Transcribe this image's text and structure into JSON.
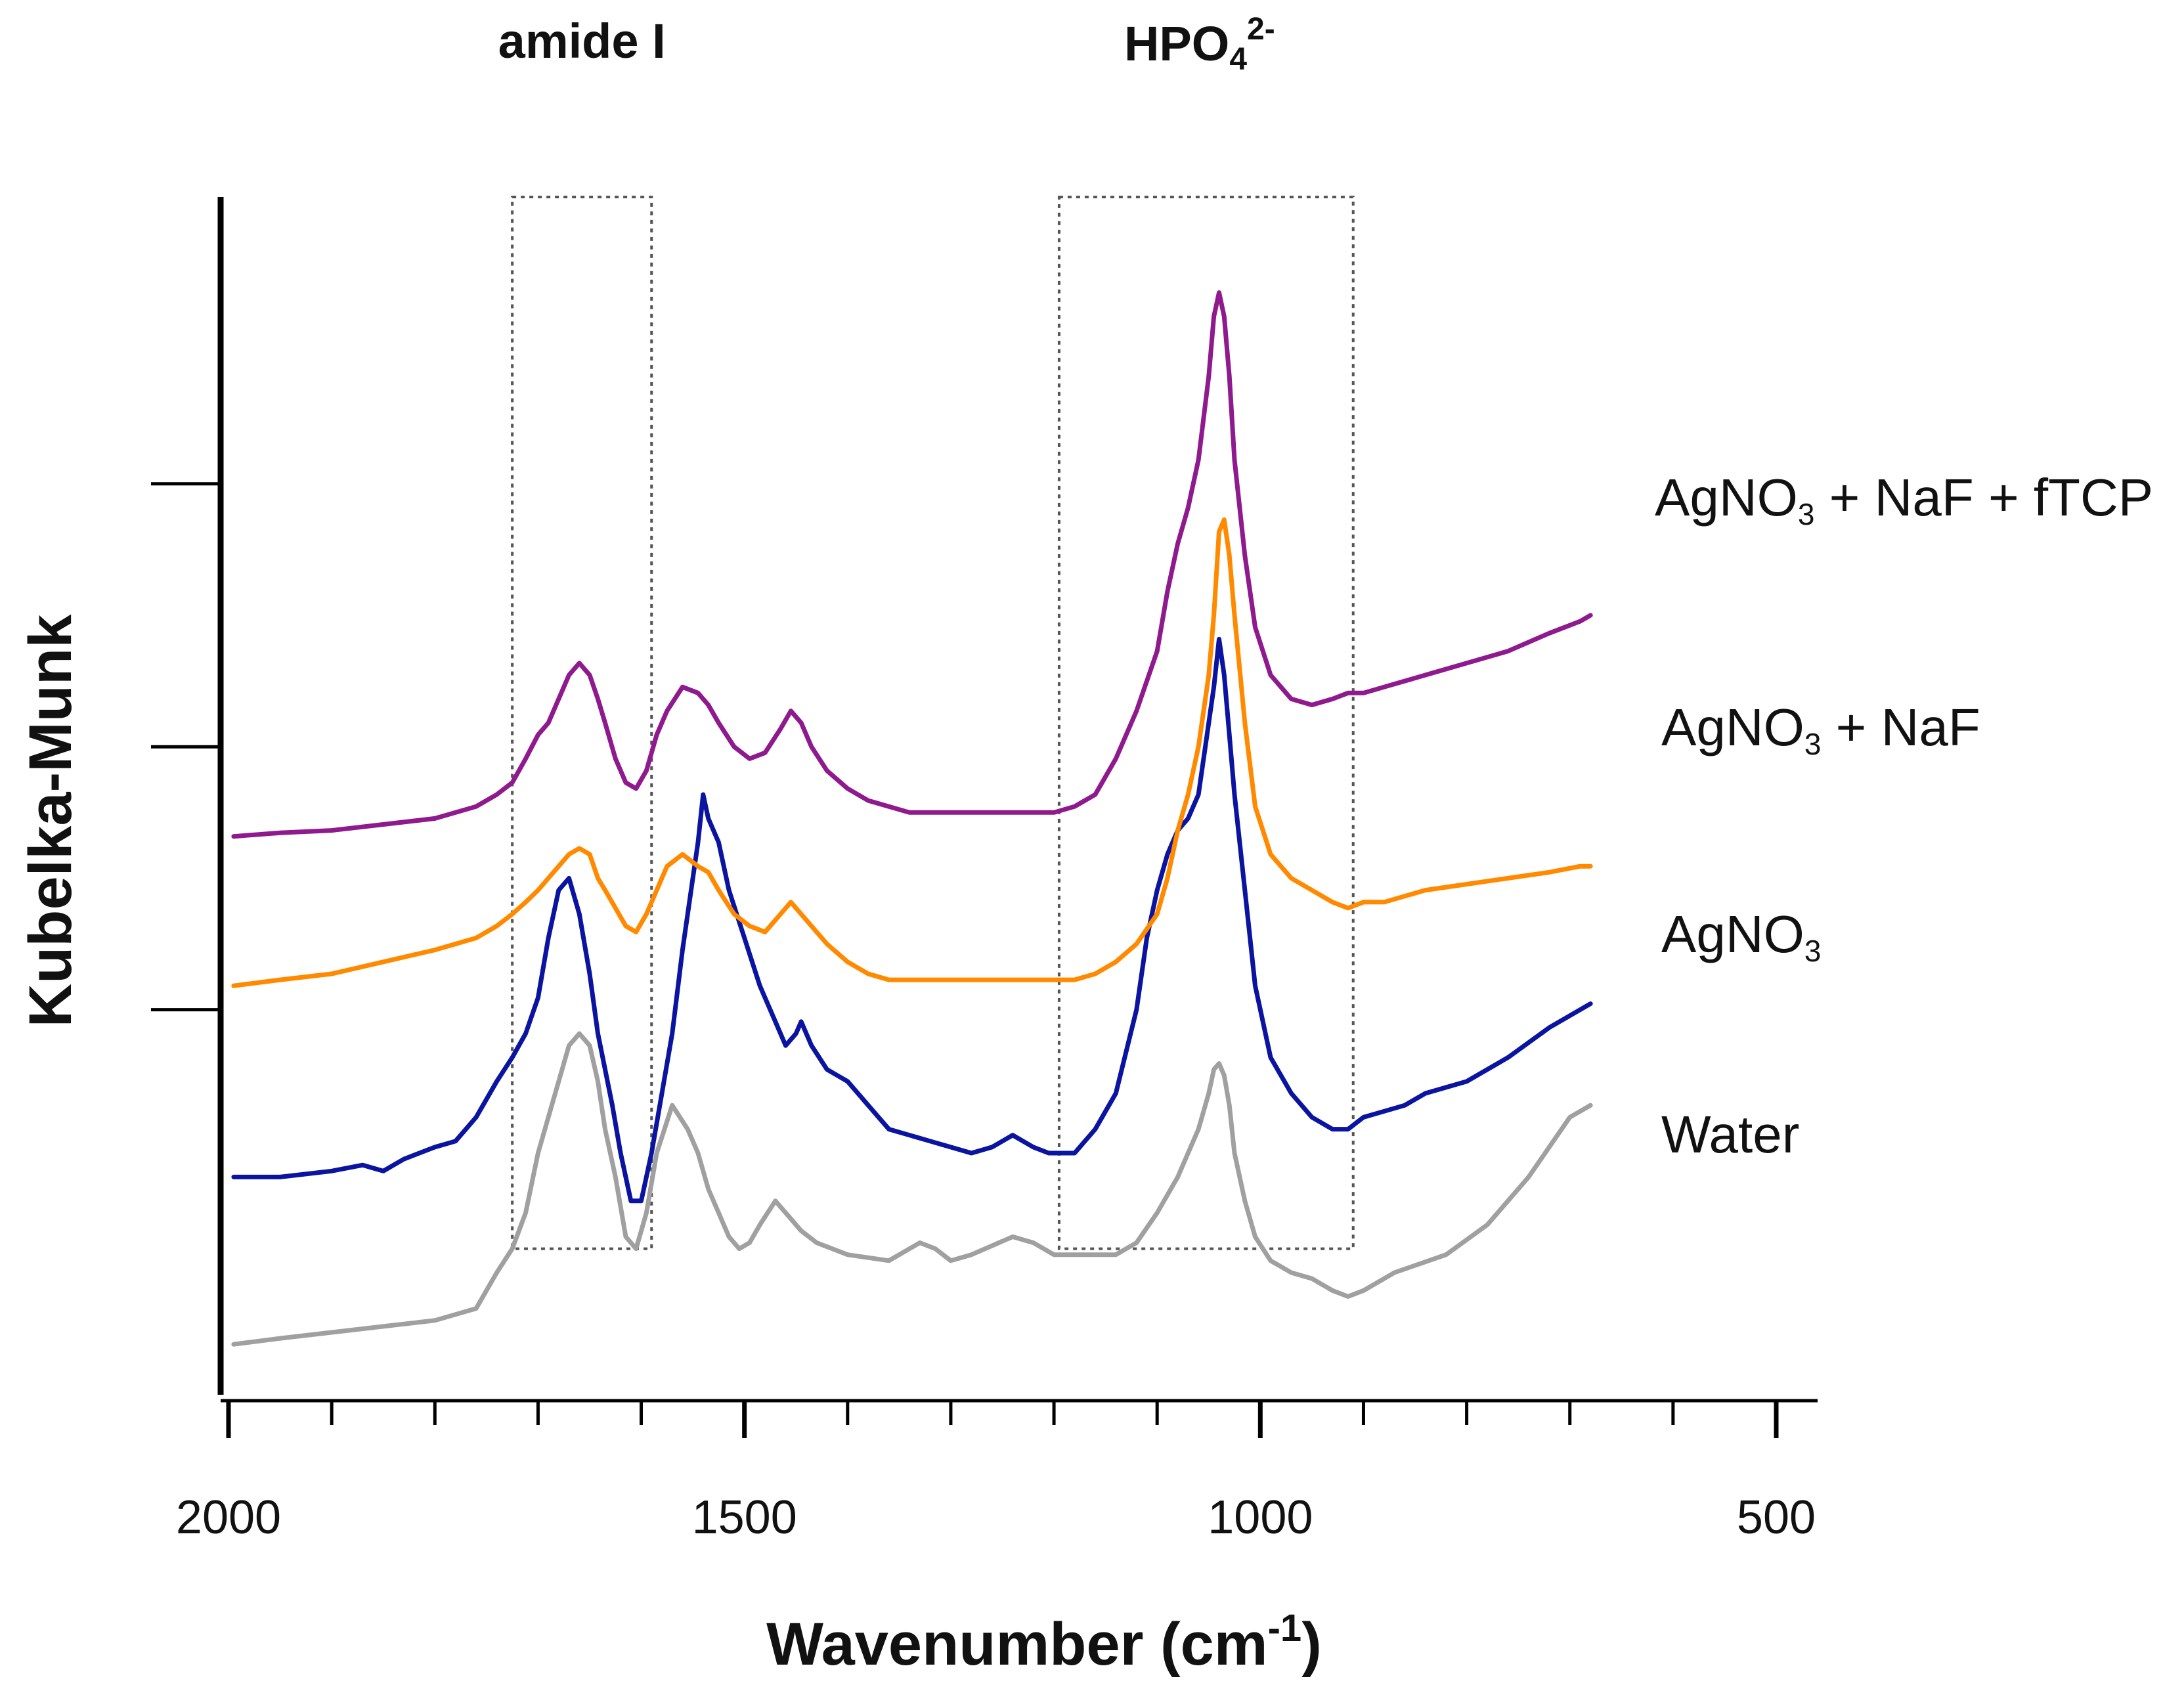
{
  "chart_data": {
    "type": "line",
    "title": "",
    "xlabel": "Wavenumber (cm",
    "xlabel_sup": "-1",
    "xlabel_end": ")",
    "ylabel": "Kubelka-Munk",
    "xlim": [
      2000,
      500
    ],
    "x_reversed": true,
    "ylim": [
      0,
      10
    ],
    "y_ticks": [
      3.2,
      5.4,
      7.6
    ],
    "grid": false,
    "x_ticks": [
      2000,
      1500,
      1000,
      500
    ],
    "x_tick_labels": [
      "2000",
      "1500",
      "1000",
      "500"
    ],
    "x_minor_ticks": [
      2000,
      1900,
      1800,
      1700,
      1600,
      1500,
      1400,
      1300,
      1200,
      1100,
      1000,
      900,
      800,
      700,
      600,
      500
    ],
    "regions": [
      {
        "name": "amide-region",
        "label": "amide I",
        "x_range": [
          1725,
          1590
        ],
        "y_range": [
          1.2,
          10.0
        ]
      },
      {
        "name": "phosphate-region",
        "label_main": "HPO",
        "label_sub": "4",
        "label_sup": "2-",
        "x_range": [
          1195,
          910
        ],
        "y_range": [
          1.2,
          10.0
        ]
      }
    ],
    "series": [
      {
        "name": "Water",
        "label_parts": [
          "Water"
        ],
        "color": "#a0a0a0",
        "x": [
          1995,
          1950,
          1900,
          1850,
          1800,
          1760,
          1740,
          1725,
          1712,
          1700,
          1690,
          1680,
          1670,
          1660,
          1650,
          1642,
          1635,
          1625,
          1615,
          1605,
          1595,
          1585,
          1570,
          1555,
          1545,
          1535,
          1525,
          1515,
          1505,
          1495,
          1485,
          1470,
          1455,
          1445,
          1430,
          1400,
          1360,
          1330,
          1315,
          1300,
          1280,
          1240,
          1220,
          1200,
          1180,
          1140,
          1120,
          1100,
          1080,
          1070,
          1060,
          1050,
          1045,
          1040,
          1035,
          1030,
          1025,
          1015,
          1005,
          990,
          970,
          950,
          930,
          915,
          900,
          870,
          820,
          780,
          740,
          700,
          680
        ],
        "y": [
          0.4,
          0.45,
          0.5,
          0.55,
          0.6,
          0.7,
          1.0,
          1.2,
          1.5,
          2.0,
          2.3,
          2.6,
          2.9,
          3.0,
          2.9,
          2.6,
          2.2,
          1.8,
          1.3,
          1.2,
          1.5,
          2.0,
          2.4,
          2.2,
          2.0,
          1.7,
          1.5,
          1.3,
          1.2,
          1.25,
          1.4,
          1.6,
          1.45,
          1.35,
          1.25,
          1.15,
          1.1,
          1.25,
          1.2,
          1.1,
          1.15,
          1.3,
          1.25,
          1.15,
          1.15,
          1.15,
          1.25,
          1.5,
          1.8,
          2.0,
          2.2,
          2.5,
          2.7,
          2.75,
          2.65,
          2.4,
          2.0,
          1.6,
          1.3,
          1.1,
          1.0,
          0.95,
          0.85,
          0.8,
          0.85,
          1.0,
          1.15,
          1.4,
          1.8,
          2.3,
          2.4
        ]
      },
      {
        "name": "AgNO3",
        "label_parts": [
          "AgNO",
          "3",
          ""
        ],
        "color": "#0a14a0",
        "x": [
          1995,
          1950,
          1900,
          1870,
          1850,
          1830,
          1800,
          1780,
          1760,
          1740,
          1725,
          1712,
          1700,
          1690,
          1680,
          1670,
          1660,
          1650,
          1642,
          1635,
          1628,
          1620,
          1610,
          1600,
          1590,
          1580,
          1570,
          1560,
          1550,
          1545,
          1540,
          1535,
          1525,
          1515,
          1500,
          1485,
          1470,
          1460,
          1450,
          1445,
          1435,
          1420,
          1400,
          1380,
          1360,
          1340,
          1320,
          1300,
          1280,
          1260,
          1240,
          1220,
          1205,
          1190,
          1180,
          1160,
          1140,
          1120,
          1110,
          1100,
          1090,
          1080,
          1070,
          1060,
          1050,
          1045,
          1040,
          1035,
          1030,
          1025,
          1015,
          1005,
          990,
          970,
          950,
          930,
          915,
          900,
          880,
          860,
          840,
          800,
          760,
          720,
          690,
          680
        ],
        "y": [
          1.8,
          1.8,
          1.85,
          1.9,
          1.85,
          1.95,
          2.05,
          2.1,
          2.3,
          2.6,
          2.8,
          3.0,
          3.3,
          3.8,
          4.2,
          4.3,
          4.0,
          3.5,
          3.0,
          2.7,
          2.4,
          2.0,
          1.6,
          1.6,
          2.0,
          2.5,
          3.0,
          3.7,
          4.3,
          4.6,
          5.0,
          4.8,
          4.6,
          4.2,
          3.8,
          3.4,
          3.1,
          2.9,
          3.0,
          3.1,
          2.9,
          2.7,
          2.6,
          2.4,
          2.2,
          2.15,
          2.1,
          2.05,
          2.0,
          2.05,
          2.15,
          2.05,
          2.0,
          2.0,
          2.0,
          2.2,
          2.5,
          3.2,
          3.8,
          4.2,
          4.5,
          4.7,
          4.8,
          5.0,
          5.6,
          5.9,
          6.3,
          6.0,
          5.5,
          5.0,
          4.2,
          3.4,
          2.8,
          2.5,
          2.3,
          2.2,
          2.2,
          2.3,
          2.35,
          2.4,
          2.5,
          2.6,
          2.8,
          3.05,
          3.2,
          3.25
        ]
      },
      {
        "name": "AgNO3 + NaF",
        "label_parts": [
          "AgNO",
          "3",
          " + NaF"
        ],
        "color": "#ff8a00",
        "x": [
          1995,
          1950,
          1900,
          1850,
          1800,
          1760,
          1740,
          1725,
          1712,
          1700,
          1690,
          1680,
          1670,
          1660,
          1650,
          1642,
          1635,
          1625,
          1615,
          1605,
          1595,
          1585,
          1575,
          1560,
          1545,
          1535,
          1525,
          1510,
          1495,
          1480,
          1465,
          1455,
          1445,
          1435,
          1420,
          1400,
          1380,
          1360,
          1340,
          1320,
          1300,
          1280,
          1260,
          1240,
          1220,
          1200,
          1180,
          1160,
          1140,
          1120,
          1100,
          1090,
          1080,
          1070,
          1060,
          1050,
          1045,
          1040,
          1035,
          1030,
          1025,
          1015,
          1005,
          990,
          970,
          950,
          930,
          915,
          900,
          880,
          860,
          840,
          800,
          760,
          720,
          690,
          680
        ],
        "y": [
          3.4,
          3.45,
          3.5,
          3.6,
          3.7,
          3.8,
          3.9,
          4.0,
          4.1,
          4.2,
          4.3,
          4.4,
          4.5,
          4.55,
          4.5,
          4.3,
          4.2,
          4.05,
          3.9,
          3.85,
          4.0,
          4.2,
          4.4,
          4.5,
          4.4,
          4.35,
          4.2,
          4.0,
          3.9,
          3.85,
          4.0,
          4.1,
          4.0,
          3.9,
          3.75,
          3.6,
          3.5,
          3.45,
          3.45,
          3.45,
          3.45,
          3.45,
          3.45,
          3.45,
          3.45,
          3.45,
          3.45,
          3.5,
          3.6,
          3.75,
          4.0,
          4.3,
          4.7,
          5.0,
          5.4,
          6.0,
          6.5,
          7.2,
          7.3,
          7.0,
          6.5,
          5.6,
          4.9,
          4.5,
          4.3,
          4.2,
          4.1,
          4.05,
          4.1,
          4.1,
          4.15,
          4.2,
          4.25,
          4.3,
          4.35,
          4.4,
          4.4
        ]
      },
      {
        "name": "AgNO3 + NaF + fTCP",
        "label_parts": [
          "AgNO",
          "3",
          " + NaF + fTCP"
        ],
        "color": "#8e1a8e",
        "x": [
          1995,
          1950,
          1900,
          1850,
          1800,
          1760,
          1740,
          1725,
          1712,
          1700,
          1690,
          1680,
          1670,
          1660,
          1650,
          1642,
          1635,
          1625,
          1615,
          1605,
          1595,
          1585,
          1575,
          1560,
          1545,
          1535,
          1525,
          1510,
          1495,
          1480,
          1465,
          1455,
          1445,
          1435,
          1420,
          1400,
          1380,
          1360,
          1340,
          1320,
          1300,
          1280,
          1260,
          1240,
          1220,
          1200,
          1180,
          1160,
          1140,
          1120,
          1100,
          1090,
          1080,
          1070,
          1060,
          1050,
          1045,
          1040,
          1035,
          1030,
          1025,
          1015,
          1005,
          990,
          970,
          950,
          930,
          915,
          900,
          880,
          860,
          840,
          800,
          760,
          720,
          690,
          680
        ],
        "y": [
          4.65,
          4.68,
          4.7,
          4.75,
          4.8,
          4.9,
          5.0,
          5.1,
          5.3,
          5.5,
          5.6,
          5.8,
          6.0,
          6.1,
          6.0,
          5.8,
          5.6,
          5.3,
          5.1,
          5.05,
          5.2,
          5.5,
          5.7,
          5.9,
          5.85,
          5.75,
          5.6,
          5.4,
          5.3,
          5.35,
          5.55,
          5.7,
          5.6,
          5.4,
          5.2,
          5.05,
          4.95,
          4.9,
          4.85,
          4.85,
          4.85,
          4.85,
          4.85,
          4.85,
          4.85,
          4.85,
          4.9,
          5.0,
          5.3,
          5.7,
          6.2,
          6.7,
          7.1,
          7.4,
          7.8,
          8.5,
          9.0,
          9.2,
          9.0,
          8.5,
          7.8,
          7.0,
          6.4,
          6.0,
          5.8,
          5.75,
          5.8,
          5.85,
          5.85,
          5.9,
          5.95,
          6.0,
          6.1,
          6.2,
          6.35,
          6.45,
          6.5
        ]
      }
    ]
  }
}
